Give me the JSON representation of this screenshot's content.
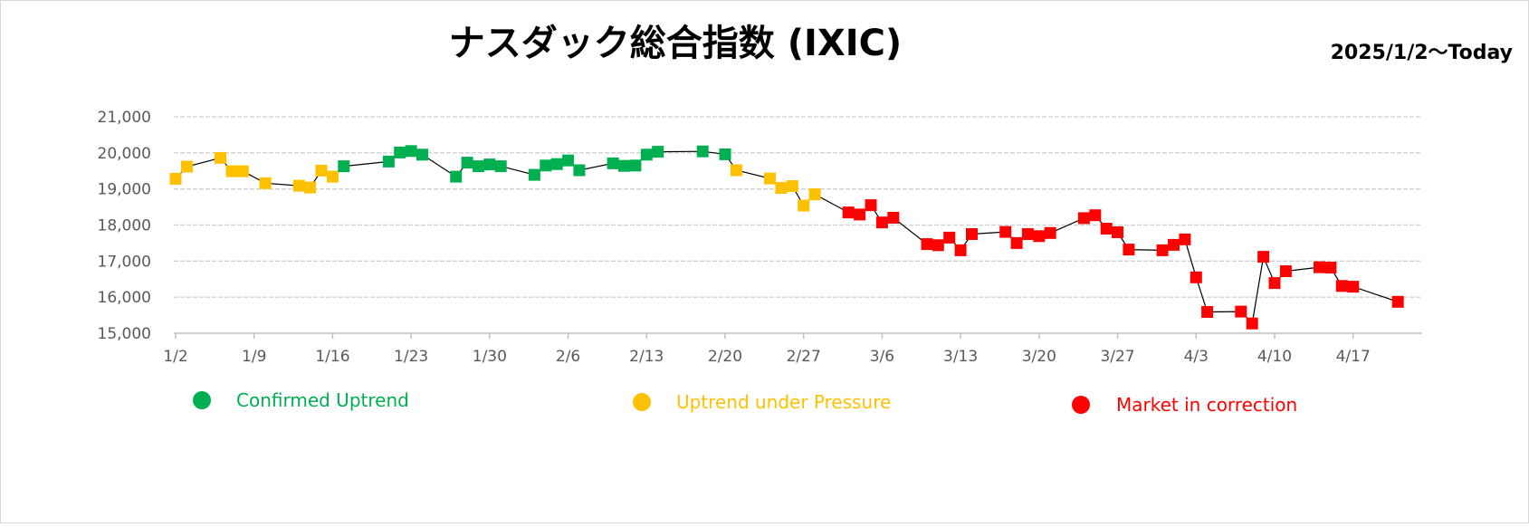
{
  "chart_data": {
    "type": "line",
    "title": "ナスダック総合指数 (IXIC)",
    "subtitle": "2025/1/2〜Today",
    "ylim": [
      15000,
      21000
    ],
    "y_ticks": [
      15000,
      16000,
      17000,
      18000,
      19000,
      20000,
      21000
    ],
    "y_tick_labels": [
      "15,000",
      "16,000",
      "17,000",
      "18,000",
      "19,000",
      "20,000",
      "21,000"
    ],
    "x_range": [
      "2025-01-02",
      "2025-04-23"
    ],
    "x_ticks": [
      "2025-01-02",
      "2025-01-09",
      "2025-01-16",
      "2025-01-23",
      "2025-01-30",
      "2025-02-06",
      "2025-02-13",
      "2025-02-20",
      "2025-02-27",
      "2025-03-06",
      "2025-03-13",
      "2025-03-20",
      "2025-03-27",
      "2025-04-03",
      "2025-04-10",
      "2025-04-17"
    ],
    "x_tick_labels": [
      "1/2",
      "1/9",
      "1/16",
      "1/23",
      "1/30",
      "2/6",
      "2/13",
      "2/20",
      "2/27",
      "3/6",
      "3/13",
      "3/20",
      "3/27",
      "4/3",
      "4/10",
      "4/17"
    ],
    "grid": true,
    "legend_placement": "bottom",
    "legend": [
      {
        "label": "Confirmed Uptrend",
        "status": "uptrend",
        "color": "#00b050"
      },
      {
        "label": "Uptrend under Pressure",
        "status": "pressure",
        "color": "#ffc000"
      },
      {
        "label": "Market in correction",
        "status": "correction",
        "color": "#ff0000"
      }
    ],
    "line_color": "#000000",
    "series": [
      {
        "status": "pressure",
        "points": [
          [
            "2025-01-02",
            19280
          ],
          [
            "2025-01-03",
            19620
          ],
          [
            "2025-01-06",
            19860
          ],
          [
            "2025-01-07",
            19490
          ],
          [
            "2025-01-08",
            19490
          ],
          [
            "2025-01-10",
            19160
          ],
          [
            "2025-01-13",
            19090
          ],
          [
            "2025-01-14",
            19040
          ],
          [
            "2025-01-15",
            19510
          ],
          [
            "2025-01-16",
            19340
          ]
        ]
      },
      {
        "status": "uptrend",
        "points": [
          [
            "2025-01-17",
            19630
          ],
          [
            "2025-01-21",
            19760
          ],
          [
            "2025-01-22",
            20010
          ],
          [
            "2025-01-23",
            20050
          ],
          [
            "2025-01-24",
            19950
          ],
          [
            "2025-01-27",
            19340
          ],
          [
            "2025-01-28",
            19730
          ],
          [
            "2025-01-29",
            19630
          ],
          [
            "2025-01-30",
            19680
          ],
          [
            "2025-01-31",
            19630
          ],
          [
            "2025-02-03",
            19390
          ],
          [
            "2025-02-04",
            19650
          ],
          [
            "2025-02-05",
            19690
          ],
          [
            "2025-02-06",
            19790
          ],
          [
            "2025-02-07",
            19520
          ],
          [
            "2025-02-10",
            19710
          ],
          [
            "2025-02-11",
            19640
          ],
          [
            "2025-02-12",
            19650
          ],
          [
            "2025-02-13",
            19950
          ],
          [
            "2025-02-14",
            20030
          ],
          [
            "2025-02-18",
            20040
          ],
          [
            "2025-02-20",
            19960
          ]
        ]
      },
      {
        "status": "pressure",
        "points": [
          [
            "2025-02-21",
            19520
          ],
          [
            "2025-02-24",
            19290
          ],
          [
            "2025-02-25",
            19030
          ],
          [
            "2025-02-26",
            19080
          ],
          [
            "2025-02-27",
            18540
          ],
          [
            "2025-02-28",
            18850
          ]
        ]
      },
      {
        "status": "correction",
        "points": [
          [
            "2025-03-03",
            18350
          ],
          [
            "2025-03-04",
            18290
          ],
          [
            "2025-03-05",
            18550
          ],
          [
            "2025-03-06",
            18070
          ],
          [
            "2025-03-07",
            18200
          ],
          [
            "2025-03-10",
            17470
          ],
          [
            "2025-03-11",
            17440
          ],
          [
            "2025-03-12",
            17650
          ],
          [
            "2025-03-13",
            17300
          ],
          [
            "2025-03-14",
            17750
          ],
          [
            "2025-03-17",
            17810
          ],
          [
            "2025-03-18",
            17500
          ],
          [
            "2025-03-19",
            17750
          ],
          [
            "2025-03-20",
            17690
          ],
          [
            "2025-03-21",
            17780
          ],
          [
            "2025-03-24",
            18190
          ],
          [
            "2025-03-25",
            18270
          ],
          [
            "2025-03-26",
            17900
          ],
          [
            "2025-03-27",
            17800
          ],
          [
            "2025-03-28",
            17320
          ],
          [
            "2025-03-31",
            17300
          ],
          [
            "2025-04-01",
            17450
          ],
          [
            "2025-04-02",
            17600
          ],
          [
            "2025-04-03",
            16550
          ],
          [
            "2025-04-04",
            15590
          ],
          [
            "2025-04-07",
            15600
          ],
          [
            "2025-04-08",
            15270
          ],
          [
            "2025-04-09",
            17120
          ],
          [
            "2025-04-10",
            16390
          ],
          [
            "2025-04-11",
            16720
          ],
          [
            "2025-04-14",
            16830
          ],
          [
            "2025-04-15",
            16820
          ],
          [
            "2025-04-16",
            16310
          ],
          [
            "2025-04-17",
            16290
          ],
          [
            "2025-04-21",
            15870
          ]
        ]
      }
    ]
  }
}
